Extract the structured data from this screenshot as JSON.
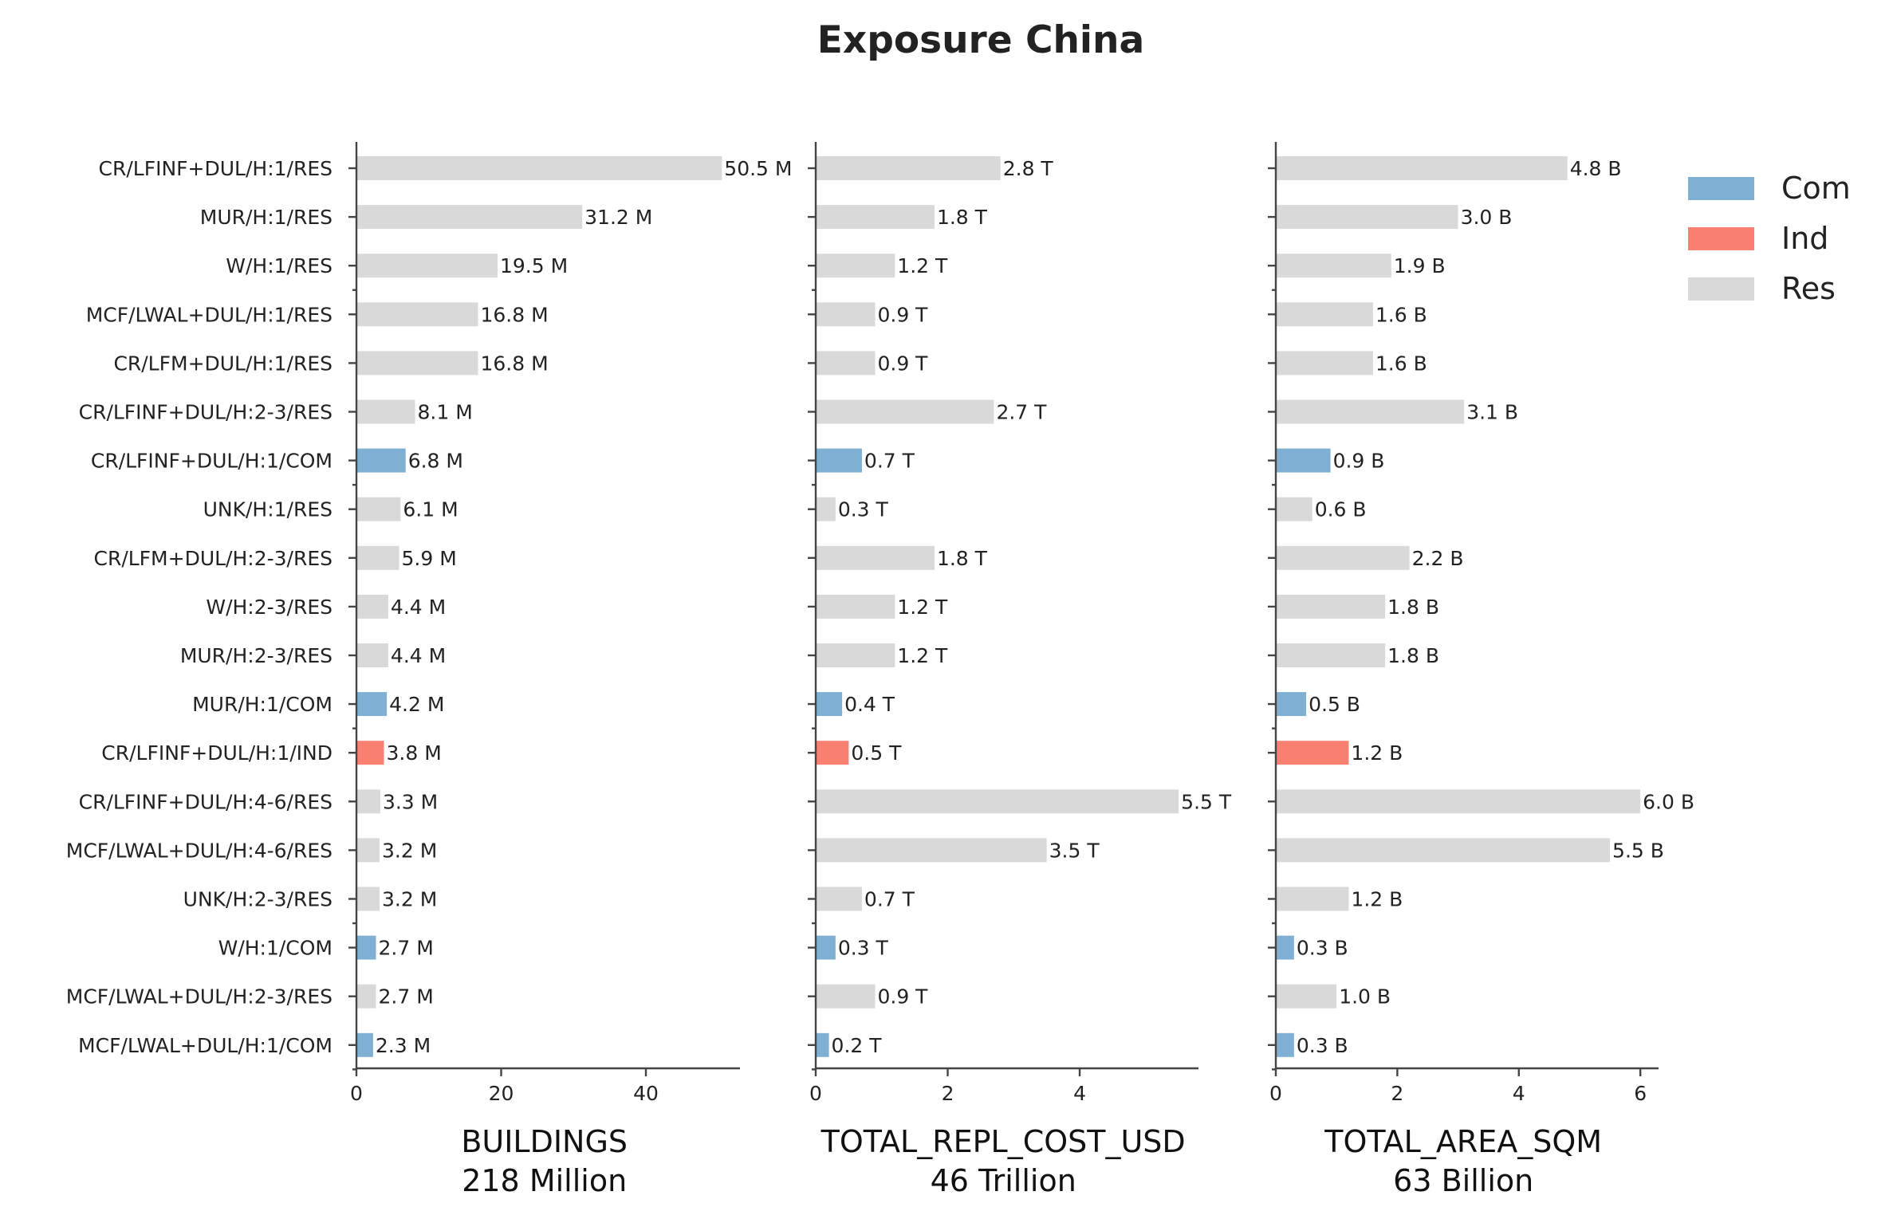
{
  "title": "Exposure China",
  "legend": {
    "placement": "top-right",
    "items": [
      {
        "key": "Com",
        "label": "Com"
      },
      {
        "key": "Ind",
        "label": "Ind"
      },
      {
        "key": "Res",
        "label": "Res"
      }
    ]
  },
  "colors": {
    "Com": "#7fafd3",
    "Ind": "#fa8072",
    "Res": "#d9d9d9"
  },
  "chart_data": {
    "type": "bar",
    "orientation": "horizontal",
    "categories": [
      "CR/LFINF+DUL/H:1/RES",
      "MUR/H:1/RES",
      "W/H:1/RES",
      "MCF/LWAL+DUL/H:1/RES",
      "CR/LFM+DUL/H:1/RES",
      "CR/LFINF+DUL/H:2-3/RES",
      "CR/LFINF+DUL/H:1/COM",
      "UNK/H:1/RES",
      "CR/LFM+DUL/H:2-3/RES",
      "W/H:2-3/RES",
      "MUR/H:2-3/RES",
      "MUR/H:1/COM",
      "CR/LFINF+DUL/H:1/IND",
      "CR/LFINF+DUL/H:4-6/RES",
      "MCF/LWAL+DUL/H:4-6/RES",
      "UNK/H:2-3/RES",
      "W/H:1/COM",
      "MCF/LWAL+DUL/H:2-3/RES",
      "MCF/LWAL+DUL/H:1/COM"
    ],
    "occupancy": [
      "Res",
      "Res",
      "Res",
      "Res",
      "Res",
      "Res",
      "Com",
      "Res",
      "Res",
      "Res",
      "Res",
      "Com",
      "Ind",
      "Res",
      "Res",
      "Res",
      "Com",
      "Res",
      "Com"
    ],
    "panels": [
      {
        "name": "BUILDINGS",
        "subtitle": "218 Million",
        "xlim": [
          0,
          53
        ],
        "xticks": [
          0,
          20,
          40
        ],
        "values": [
          50.5,
          31.2,
          19.5,
          16.8,
          16.8,
          8.1,
          6.8,
          6.1,
          5.9,
          4.4,
          4.4,
          4.2,
          3.8,
          3.3,
          3.2,
          3.2,
          2.7,
          2.7,
          2.3
        ],
        "labels": [
          "50.5 M",
          "31.2 M",
          "19.5 M",
          "16.8 M",
          "16.8 M",
          "8.1 M",
          "6.8 M",
          "6.1 M",
          "5.9 M",
          "4.4 M",
          "4.4 M",
          "4.2 M",
          "3.8 M",
          "3.3 M",
          "3.2 M",
          "3.2 M",
          "2.7 M",
          "2.7 M",
          "2.3 M"
        ]
      },
      {
        "name": "TOTAL_REPL_COST_USD",
        "subtitle": "46 Trillion",
        "xlim": [
          0,
          5.8
        ],
        "xticks": [
          0,
          2,
          4
        ],
        "values": [
          2.8,
          1.8,
          1.2,
          0.9,
          0.9,
          2.7,
          0.7,
          0.3,
          1.8,
          1.2,
          1.2,
          0.4,
          0.5,
          5.5,
          3.5,
          0.7,
          0.3,
          0.9,
          0.2
        ],
        "labels": [
          "2.8 T",
          "1.8 T",
          "1.2 T",
          "0.9 T",
          "0.9 T",
          "2.7 T",
          "0.7 T",
          "0.3 T",
          "1.8 T",
          "1.2 T",
          "1.2 T",
          "0.4 T",
          "0.5 T",
          "5.5 T",
          "3.5 T",
          "0.7 T",
          "0.3 T",
          "0.9 T",
          "0.2 T"
        ]
      },
      {
        "name": "TOTAL_AREA_SQM",
        "subtitle": "63 Billion",
        "xlim": [
          0,
          6.3
        ],
        "xticks": [
          0,
          2,
          4,
          6
        ],
        "values": [
          4.8,
          3.0,
          1.9,
          1.6,
          1.6,
          3.1,
          0.9,
          0.6,
          2.2,
          1.8,
          1.8,
          0.5,
          1.2,
          6.0,
          5.5,
          1.2,
          0.3,
          1.0,
          0.3
        ],
        "labels": [
          "4.8 B",
          "3.0 B",
          "1.9 B",
          "1.6 B",
          "1.6 B",
          "3.1 B",
          "0.9 B",
          "0.6 B",
          "2.2 B",
          "1.8 B",
          "1.8 B",
          "0.5 B",
          "1.2 B",
          "6.0 B",
          "5.5 B",
          "1.2 B",
          "0.3 B",
          "1.0 B",
          "0.3 B"
        ]
      }
    ]
  }
}
